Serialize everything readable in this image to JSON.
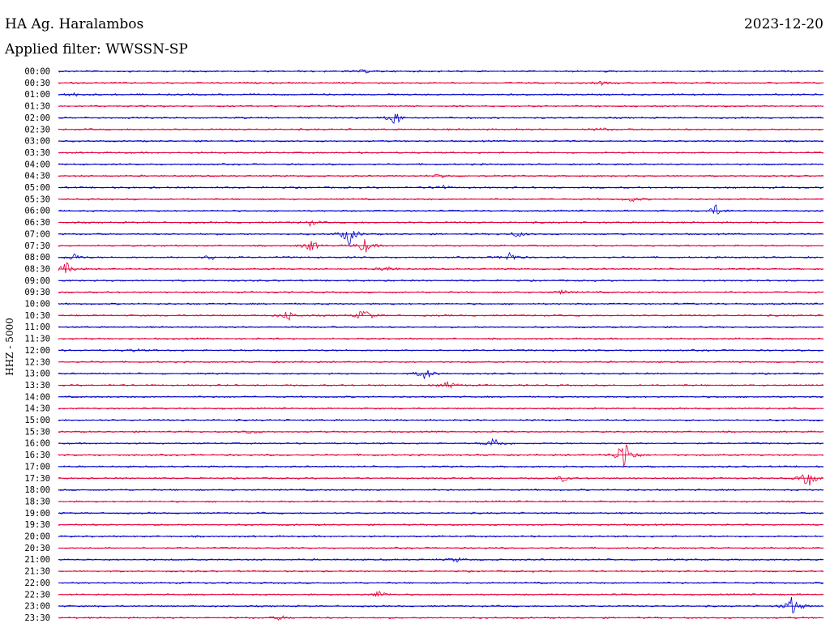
{
  "header": {
    "station": "HA Ag. Haralambos",
    "date": "2023-12-20",
    "filter": "Applied filter: WWSSN-SP"
  },
  "ylabel": "HHZ - 5000",
  "colors": {
    "line_a": "#0000cc",
    "line_b": "#e6003a",
    "text": "#000000"
  },
  "chart_data": {
    "type": "line",
    "title": "HA Ag. Haralambos",
    "subtitle": "Applied filter: WWSSN-SP",
    "ylabel": "HHZ - 5000",
    "rows": [
      {
        "label": "00:00",
        "events": [
          [
            0.4,
            2
          ]
        ]
      },
      {
        "label": "00:30",
        "events": [
          [
            0.71,
            2
          ]
        ]
      },
      {
        "label": "01:00",
        "events": [
          [
            0.02,
            2
          ]
        ]
      },
      {
        "label": "01:30",
        "events": []
      },
      {
        "label": "02:00",
        "events": [
          [
            0.44,
            9
          ]
        ]
      },
      {
        "label": "02:30",
        "events": [
          [
            0.71,
            2
          ]
        ]
      },
      {
        "label": "03:00",
        "events": []
      },
      {
        "label": "03:30",
        "events": []
      },
      {
        "label": "04:00",
        "events": []
      },
      {
        "label": "04:30",
        "events": [
          [
            0.5,
            3
          ]
        ]
      },
      {
        "label": "05:00",
        "events": [
          [
            0.5,
            4
          ]
        ]
      },
      {
        "label": "05:30",
        "events": [
          [
            0.75,
            3
          ]
        ]
      },
      {
        "label": "06:00",
        "events": [
          [
            0.86,
            7
          ]
        ]
      },
      {
        "label": "06:30",
        "events": [
          [
            0.33,
            4
          ]
        ]
      },
      {
        "label": "07:00",
        "events": [
          [
            0.38,
            14
          ],
          [
            0.6,
            4
          ]
        ]
      },
      {
        "label": "07:30",
        "events": [
          [
            0.33,
            8
          ],
          [
            0.4,
            10
          ]
        ]
      },
      {
        "label": "08:00",
        "events": [
          [
            0.02,
            5
          ],
          [
            0.2,
            4
          ],
          [
            0.59,
            7
          ]
        ]
      },
      {
        "label": "08:30",
        "events": [
          [
            0.01,
            8
          ],
          [
            0.43,
            4
          ]
        ]
      },
      {
        "label": "09:00",
        "events": []
      },
      {
        "label": "09:30",
        "events": [
          [
            0.66,
            3
          ]
        ]
      },
      {
        "label": "10:00",
        "events": []
      },
      {
        "label": "10:30",
        "events": [
          [
            0.3,
            7
          ],
          [
            0.4,
            10
          ]
        ]
      },
      {
        "label": "11:00",
        "events": []
      },
      {
        "label": "11:30",
        "events": []
      },
      {
        "label": "12:00",
        "events": [
          [
            0.1,
            2
          ]
        ]
      },
      {
        "label": "12:30",
        "events": []
      },
      {
        "label": "13:00",
        "events": [
          [
            0.48,
            8
          ]
        ]
      },
      {
        "label": "13:30",
        "events": [
          [
            0.51,
            5
          ]
        ]
      },
      {
        "label": "14:00",
        "events": []
      },
      {
        "label": "14:30",
        "events": []
      },
      {
        "label": "15:00",
        "events": []
      },
      {
        "label": "15:30",
        "events": [
          [
            0.25,
            3
          ]
        ]
      },
      {
        "label": "16:00",
        "events": [
          [
            0.57,
            9
          ]
        ]
      },
      {
        "label": "16:30",
        "events": [
          [
            0.74,
            25
          ]
        ]
      },
      {
        "label": "17:00",
        "events": []
      },
      {
        "label": "17:30",
        "events": [
          [
            0.66,
            4
          ],
          [
            0.98,
            12
          ]
        ]
      },
      {
        "label": "18:00",
        "events": []
      },
      {
        "label": "18:30",
        "events": []
      },
      {
        "label": "19:00",
        "events": []
      },
      {
        "label": "19:30",
        "events": []
      },
      {
        "label": "20:00",
        "events": []
      },
      {
        "label": "20:30",
        "events": []
      },
      {
        "label": "21:00",
        "events": [
          [
            0.52,
            3
          ]
        ]
      },
      {
        "label": "21:30",
        "events": []
      },
      {
        "label": "22:00",
        "events": []
      },
      {
        "label": "22:30",
        "events": [
          [
            0.42,
            5
          ]
        ]
      },
      {
        "label": "23:00",
        "events": [
          [
            0.96,
            14
          ]
        ]
      },
      {
        "label": "23:30",
        "events": [
          [
            0.29,
            3
          ]
        ]
      }
    ]
  }
}
